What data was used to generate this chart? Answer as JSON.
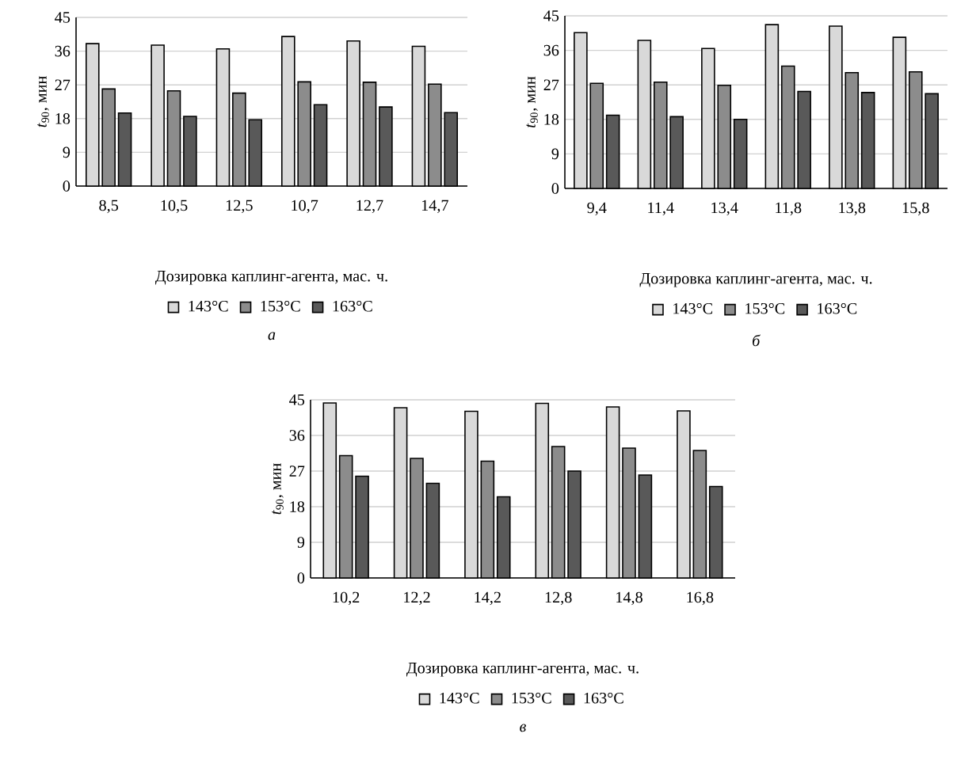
{
  "chart_data": [
    {
      "type": "bar",
      "categories": [
        "8,5",
        "10,5",
        "12,5",
        "10,7",
        "12,7",
        "14,7"
      ],
      "ylabel": "*t*$_{90}$, мин",
      "xlabel": "Дозировка каплинг-агента, мас. ч.",
      "annotations": [
        "*а*"
      ],
      "ylim": [
        0,
        45
      ],
      "yticks": [
        0,
        9,
        18,
        27,
        36,
        45
      ],
      "grid": "y",
      "legend": "bottom",
      "series": [
        {
          "name": "143°C",
          "color": "#d9d9d9",
          "values": [
            38.0,
            37.6,
            36.6,
            39.9,
            38.7,
            37.3
          ]
        },
        {
          "name": "153°C",
          "color": "#8c8c8c",
          "values": [
            25.9,
            25.4,
            24.8,
            27.8,
            27.7,
            27.2
          ]
        },
        {
          "name": "163°C",
          "color": "#595959",
          "values": [
            19.5,
            18.6,
            17.7,
            21.7,
            21.1,
            19.6
          ]
        }
      ]
    },
    {
      "type": "bar",
      "categories": [
        "9,4",
        "11,4",
        "13,4",
        "11,8",
        "13,8",
        "15,8"
      ],
      "ylabel": "*t*$_{90}$, мин",
      "xlabel": "Дозировка каплинг-агента, мас. ч.",
      "annotations": [
        "*б*"
      ],
      "ylim": [
        0,
        45
      ],
      "yticks": [
        0,
        9,
        18,
        27,
        36,
        45
      ],
      "grid": "y",
      "legend": "bottom",
      "series": [
        {
          "name": "143°C",
          "color": "#d9d9d9",
          "values": [
            40.6,
            38.6,
            36.5,
            42.7,
            42.3,
            39.4
          ]
        },
        {
          "name": "153°C",
          "color": "#8c8c8c",
          "values": [
            27.4,
            27.7,
            26.9,
            31.9,
            30.2,
            30.4
          ]
        },
        {
          "name": "163°C",
          "color": "#595959",
          "values": [
            19.1,
            18.7,
            18.0,
            25.3,
            25.0,
            24.7
          ]
        }
      ]
    },
    {
      "type": "bar",
      "categories": [
        "10,2",
        "12,2",
        "14,2",
        "12,8",
        "14,8",
        "16,8"
      ],
      "ylabel": "*t*$_{90}$, мин",
      "xlabel": "Дозировка каплинг-агента, мас. ч.",
      "annotations": [
        "*в*"
      ],
      "ylim": [
        0,
        45
      ],
      "yticks": [
        0,
        9,
        18,
        27,
        36,
        45
      ],
      "grid": "y",
      "legend": "bottom",
      "series": [
        {
          "name": "143°C",
          "color": "#d9d9d9",
          "values": [
            44.2,
            43.0,
            42.1,
            44.1,
            43.2,
            42.2
          ]
        },
        {
          "name": "153°C",
          "color": "#8c8c8c",
          "values": [
            30.9,
            30.2,
            29.5,
            33.2,
            32.8,
            32.2
          ]
        },
        {
          "name": "163°C",
          "color": "#595959",
          "values": [
            25.7,
            23.9,
            20.5,
            27.0,
            26.0,
            23.1
          ]
        }
      ]
    }
  ]
}
